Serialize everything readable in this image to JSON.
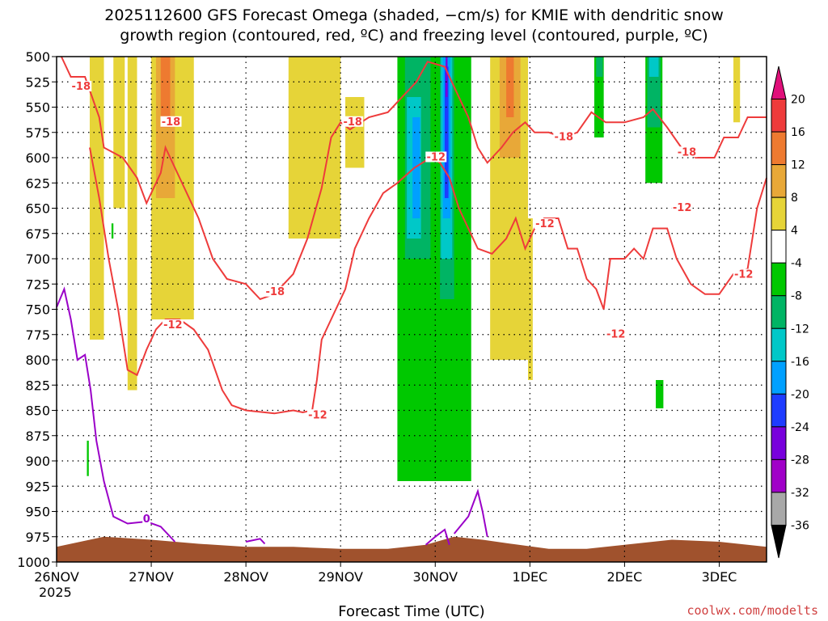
{
  "chart_data": {
    "type": "heatmap",
    "title_line1": "2025112600 GFS Forecast Omega (shaded, −cm/s) for KMIE with dendritic snow",
    "title_line2": "growth region (contoured, red, ºC) and freezing level (contoured, purple, ºC)",
    "xlabel": "Forecast Time (UTC)",
    "credit": "coolwx.com/modelts",
    "x_tick_labels": [
      "26NOV",
      "27NOV",
      "28NOV",
      "29NOV",
      "30NOV",
      "1DEC",
      "2DEC",
      "3DEC"
    ],
    "x_year_label": "2025",
    "x_range_days": [
      0,
      7.5
    ],
    "y_levels": [
      500,
      525,
      550,
      575,
      600,
      625,
      650,
      675,
      700,
      725,
      750,
      775,
      800,
      825,
      850,
      875,
      900,
      925,
      950,
      975,
      1000
    ],
    "y_range": [
      500,
      1000
    ],
    "y_reversed": true,
    "grid": true,
    "colorbar": {
      "ticks": [
        "20",
        "16",
        "12",
        "8",
        "4",
        "-4",
        "-8",
        "-12",
        "-16",
        "-20",
        "-24",
        "-28",
        "-32",
        "-36"
      ],
      "colors": [
        "#e0107a",
        "#ee3b3b",
        "#ee7a30",
        "#e8a838",
        "#e6d438",
        "#ffffff",
        "#00c800",
        "#00b464",
        "#00c8c8",
        "#00a0ff",
        "#1e3cff",
        "#7800dc",
        "#a000c8",
        "#a8a8a8",
        "#000000"
      ]
    },
    "omega_regions": [
      {
        "color": "#e6d438",
        "x0": 0.35,
        "x1": 0.5,
        "p0": 500,
        "p1": 780
      },
      {
        "color": "#e6d438",
        "x0": 0.6,
        "x1": 0.72,
        "p0": 500,
        "p1": 650
      },
      {
        "color": "#e6d438",
        "x0": 0.75,
        "x1": 0.85,
        "p0": 500,
        "p1": 830
      },
      {
        "color": "#e6d438",
        "x0": 1.0,
        "x1": 1.45,
        "p0": 500,
        "p1": 760
      },
      {
        "color": "#e8a838",
        "x0": 1.05,
        "x1": 1.25,
        "p0": 500,
        "p1": 640
      },
      {
        "color": "#ee7a30",
        "x0": 1.1,
        "x1": 1.2,
        "p0": 500,
        "p1": 570
      },
      {
        "color": "#e6d438",
        "x0": 2.45,
        "x1": 3.0,
        "p0": 500,
        "p1": 680
      },
      {
        "color": "#e6d438",
        "x0": 3.05,
        "x1": 3.25,
        "p0": 540,
        "p1": 610
      },
      {
        "color": "#e6d438",
        "x0": 3.7,
        "x1": 3.78,
        "p0": 740,
        "p1": 870
      },
      {
        "color": "#00c800",
        "x0": 3.6,
        "x1": 4.38,
        "p0": 500,
        "p1": 920
      },
      {
        "color": "#00b464",
        "x0": 3.68,
        "x1": 3.95,
        "p0": 500,
        "p1": 700
      },
      {
        "color": "#00c8c8",
        "x0": 3.7,
        "x1": 3.85,
        "p0": 540,
        "p1": 680
      },
      {
        "color": "#00a0ff",
        "x0": 3.76,
        "x1": 3.84,
        "p0": 560,
        "p1": 660
      },
      {
        "color": "#00b464",
        "x0": 4.05,
        "x1": 4.2,
        "p0": 500,
        "p1": 740
      },
      {
        "color": "#00c8c8",
        "x0": 4.06,
        "x1": 4.18,
        "p0": 500,
        "p1": 700
      },
      {
        "color": "#00a0ff",
        "x0": 4.08,
        "x1": 4.16,
        "p0": 500,
        "p1": 660
      },
      {
        "color": "#1e3cff",
        "x0": 4.1,
        "x1": 4.14,
        "p0": 510,
        "p1": 640
      },
      {
        "color": "#7800dc",
        "x0": 4.11,
        "x1": 4.13,
        "p0": 500,
        "p1": 540
      },
      {
        "color": "#e6d438",
        "x0": 4.58,
        "x1": 4.98,
        "p0": 500,
        "p1": 800
      },
      {
        "color": "#e8a838",
        "x0": 4.68,
        "x1": 4.9,
        "p0": 500,
        "p1": 600
      },
      {
        "color": "#ee7a30",
        "x0": 4.75,
        "x1": 4.83,
        "p0": 500,
        "p1": 560
      },
      {
        "color": "#e6d438",
        "x0": 4.98,
        "x1": 5.03,
        "p0": 660,
        "p1": 820
      },
      {
        "color": "#00c800",
        "x0": 5.68,
        "x1": 5.78,
        "p0": 500,
        "p1": 580
      },
      {
        "color": "#00b464",
        "x0": 5.7,
        "x1": 5.77,
        "p0": 500,
        "p1": 520
      },
      {
        "color": "#00c800",
        "x0": 6.22,
        "x1": 6.4,
        "p0": 500,
        "p1": 625
      },
      {
        "color": "#00b464",
        "x0": 6.24,
        "x1": 6.38,
        "p0": 500,
        "p1": 570
      },
      {
        "color": "#00c8c8",
        "x0": 6.26,
        "x1": 6.36,
        "p0": 500,
        "p1": 520
      },
      {
        "color": "#e6d438",
        "x0": 7.15,
        "x1": 7.22,
        "p0": 500,
        "p1": 565
      },
      {
        "color": "#00c800",
        "x0": 6.33,
        "x1": 6.41,
        "p0": 820,
        "p1": 848
      },
      {
        "color": "#00c800",
        "x0": 0.58,
        "x1": 0.6,
        "p0": 665,
        "p1": 680
      },
      {
        "color": "#00c800",
        "x0": 0.32,
        "x1": 0.34,
        "p0": 880,
        "p1": 915
      }
    ],
    "dgz_contours": [
      {
        "label": "-18",
        "points": [
          [
            0.05,
            500
          ],
          [
            0.15,
            520
          ],
          [
            0.3,
            520
          ],
          [
            0.45,
            560
          ],
          [
            0.5,
            590
          ],
          [
            0.7,
            600
          ],
          [
            0.85,
            620
          ],
          [
            0.95,
            645
          ],
          [
            1.1,
            615
          ],
          [
            1.15,
            590
          ],
          [
            1.3,
            620
          ],
          [
            1.5,
            660
          ],
          [
            1.65,
            700
          ],
          [
            1.8,
            720
          ],
          [
            2.0,
            725
          ],
          [
            2.15,
            740
          ],
          [
            2.3,
            735
          ],
          [
            2.5,
            715
          ],
          [
            2.65,
            680
          ],
          [
            2.8,
            630
          ],
          [
            2.9,
            580
          ],
          [
            3.0,
            565
          ],
          [
            3.1,
            572
          ],
          [
            3.3,
            560
          ],
          [
            3.5,
            555
          ],
          [
            3.65,
            540
          ],
          [
            3.8,
            525
          ],
          [
            3.92,
            505
          ],
          [
            4.1,
            510
          ],
          [
            4.25,
            540
          ],
          [
            4.35,
            560
          ],
          [
            4.45,
            590
          ],
          [
            4.55,
            605
          ],
          [
            4.7,
            590
          ],
          [
            4.82,
            575
          ],
          [
            4.95,
            565
          ],
          [
            5.05,
            575
          ],
          [
            5.2,
            575
          ],
          [
            5.35,
            580
          ],
          [
            5.5,
            575
          ],
          [
            5.65,
            555
          ],
          [
            5.8,
            565
          ],
          [
            6.0,
            565
          ],
          [
            6.2,
            560
          ],
          [
            6.3,
            552
          ],
          [
            6.45,
            570
          ],
          [
            6.6,
            590
          ],
          [
            6.75,
            600
          ],
          [
            6.95,
            600
          ],
          [
            7.05,
            580
          ],
          [
            7.2,
            580
          ],
          [
            7.3,
            560
          ],
          [
            7.5,
            560
          ]
        ]
      },
      {
        "label": "-12",
        "points": [
          [
            0.35,
            590
          ],
          [
            0.45,
            640
          ],
          [
            0.55,
            700
          ],
          [
            0.65,
            750
          ],
          [
            0.75,
            810
          ],
          [
            0.85,
            815
          ],
          [
            0.95,
            790
          ],
          [
            1.05,
            770
          ],
          [
            1.15,
            760
          ],
          [
            1.3,
            760
          ],
          [
            1.45,
            770
          ],
          [
            1.6,
            790
          ],
          [
            1.75,
            830
          ],
          [
            1.85,
            845
          ],
          [
            2.0,
            850
          ],
          [
            2.3,
            853
          ],
          [
            2.5,
            850
          ],
          [
            2.6,
            852
          ],
          [
            2.7,
            850
          ],
          [
            2.75,
            820
          ],
          [
            2.8,
            780
          ],
          [
            2.9,
            760
          ],
          [
            3.05,
            730
          ],
          [
            3.15,
            690
          ],
          [
            3.3,
            660
          ],
          [
            3.45,
            635
          ],
          [
            3.6,
            625
          ],
          [
            3.78,
            610
          ],
          [
            3.95,
            600
          ],
          [
            4.05,
            605
          ],
          [
            4.15,
            620
          ],
          [
            4.25,
            650
          ],
          [
            4.35,
            670
          ],
          [
            4.45,
            690
          ],
          [
            4.6,
            695
          ],
          [
            4.75,
            680
          ],
          [
            4.85,
            660
          ],
          [
            4.95,
            690
          ],
          [
            5.05,
            670
          ],
          [
            5.15,
            660
          ],
          [
            5.3,
            660
          ],
          [
            5.4,
            690
          ],
          [
            5.5,
            690
          ],
          [
            5.6,
            720
          ],
          [
            5.7,
            730
          ],
          [
            5.78,
            750
          ],
          [
            5.85,
            700
          ],
          [
            6.0,
            700
          ],
          [
            6.1,
            690
          ],
          [
            6.2,
            700
          ],
          [
            6.3,
            670
          ],
          [
            6.45,
            670
          ],
          [
            6.55,
            700
          ],
          [
            6.7,
            725
          ],
          [
            6.85,
            735
          ],
          [
            7.0,
            735
          ],
          [
            7.15,
            715
          ],
          [
            7.3,
            710
          ],
          [
            7.4,
            650
          ],
          [
            7.5,
            620
          ]
        ]
      }
    ],
    "dgz_labels": [
      {
        "text": "-18",
        "x": 0.25,
        "p": 532
      },
      {
        "text": "-18",
        "x": 1.2,
        "p": 567
      },
      {
        "text": "-18",
        "x": 2.3,
        "p": 735
      },
      {
        "text": "-18",
        "x": 3.12,
        "p": 567
      },
      {
        "text": "-18",
        "x": 5.35,
        "p": 582
      },
      {
        "text": "-18",
        "x": 6.65,
        "p": 597
      },
      {
        "text": "-12",
        "x": 1.22,
        "p": 768
      },
      {
        "text": "-12",
        "x": 2.75,
        "p": 857
      },
      {
        "text": "-12",
        "x": 4.0,
        "p": 602
      },
      {
        "text": "-12",
        "x": 5.15,
        "p": 668
      },
      {
        "text": "-12",
        "x": 5.9,
        "p": 777
      },
      {
        "text": "-12",
        "x": 6.6,
        "p": 652
      },
      {
        "text": "-12",
        "x": 7.25,
        "p": 718
      }
    ],
    "freezing_contours": [
      {
        "label": "0",
        "points": [
          [
            0.0,
            748
          ],
          [
            0.08,
            730
          ],
          [
            0.15,
            760
          ],
          [
            0.22,
            800
          ],
          [
            0.3,
            795
          ],
          [
            0.36,
            830
          ],
          [
            0.42,
            880
          ],
          [
            0.5,
            920
          ],
          [
            0.6,
            955
          ],
          [
            0.75,
            962
          ],
          [
            0.95,
            960
          ],
          [
            1.1,
            965
          ],
          [
            1.25,
            980
          ]
        ]
      },
      {
        "label": "0",
        "points": [
          [
            2.0,
            980
          ],
          [
            2.15,
            977
          ],
          [
            2.2,
            982
          ]
        ]
      },
      {
        "label": "0",
        "points": [
          [
            3.9,
            983
          ],
          [
            4.0,
            975
          ],
          [
            4.1,
            968
          ],
          [
            4.15,
            983
          ]
        ]
      },
      {
        "label": "0",
        "points": [
          [
            4.2,
            972
          ],
          [
            4.35,
            955
          ],
          [
            4.45,
            930
          ],
          [
            4.5,
            950
          ],
          [
            4.55,
            975
          ]
        ]
      }
    ],
    "freezing_labels": [
      {
        "text": "0",
        "x": 0.95,
        "p": 960
      }
    ],
    "terrain": {
      "color": "#a0522d",
      "points": [
        [
          0.0,
          985
        ],
        [
          0.5,
          975
        ],
        [
          1.0,
          978
        ],
        [
          1.5,
          982
        ],
        [
          2.0,
          985
        ],
        [
          2.5,
          985
        ],
        [
          3.0,
          987
        ],
        [
          3.5,
          987
        ],
        [
          3.9,
          983
        ],
        [
          4.2,
          975
        ],
        [
          4.5,
          978
        ],
        [
          4.8,
          982
        ],
        [
          5.2,
          987
        ],
        [
          5.6,
          987
        ],
        [
          6.0,
          983
        ],
        [
          6.5,
          978
        ],
        [
          7.0,
          980
        ],
        [
          7.5,
          985
        ]
      ]
    }
  }
}
